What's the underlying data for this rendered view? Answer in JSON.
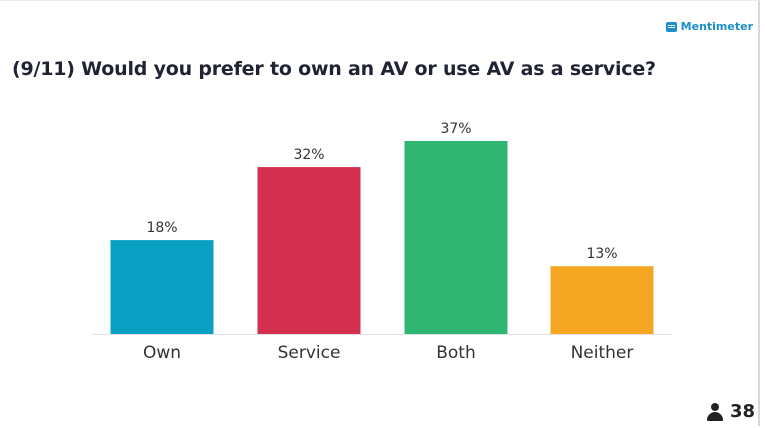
{
  "brand": {
    "name": "Mentimeter",
    "color": "#1c8ec9"
  },
  "question": "(9/11) Would you prefer to own an AV or use AV as a service?",
  "participants": {
    "count": "38",
    "icon": "user-icon"
  },
  "chart_data": {
    "type": "bar",
    "categories": [
      "Own",
      "Service",
      "Both",
      "Neither"
    ],
    "values": [
      18,
      32,
      37,
      13
    ],
    "value_labels": [
      "18%",
      "32%",
      "37%",
      "13%"
    ],
    "colors": [
      "#0aa0c4",
      "#d2304e",
      "#2fb672",
      "#f5a622"
    ],
    "title": "(9/11) Would you prefer to own an AV or use AV as a service?",
    "xlabel": "",
    "ylabel": "",
    "ylim": [
      0,
      37
    ],
    "grid": false,
    "legend": "none"
  }
}
